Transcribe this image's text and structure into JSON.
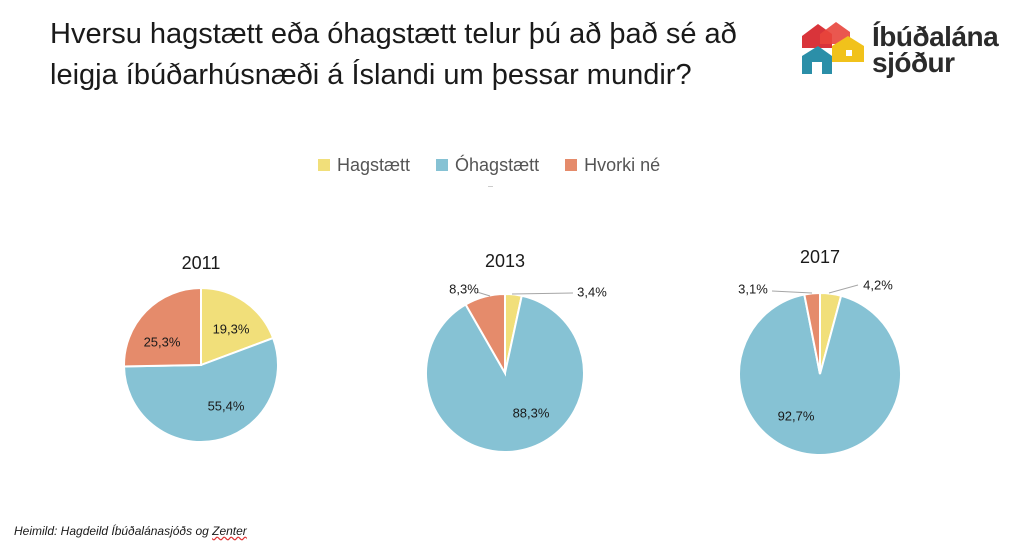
{
  "title": "Hversu hagstætt eða óhagstætt telur þú að það sé að leigja íbúðarhúsnæði á Íslandi um þessar mundir?",
  "logo": {
    "line1": "Íbúðalána",
    "line2": "sjóður"
  },
  "legend": [
    {
      "label": "Hagstætt",
      "color": "#f1df7a"
    },
    {
      "label": "Óhagstætt",
      "color": "#86c2d4"
    },
    {
      "label": "Hvorki né",
      "color": "#e58b6b"
    }
  ],
  "source": {
    "prefix": "Heimild: Hagdeild Íbúðalánasjóðs og ",
    "underlined": "Zenter"
  },
  "chart_data": [
    {
      "type": "pie",
      "title": "2011",
      "categories": [
        "Hagstætt",
        "Óhagstætt",
        "Hvorki né"
      ],
      "values": [
        19.3,
        55.4,
        25.3
      ],
      "labels": [
        "19,3%",
        "55,4%",
        "25,3%"
      ]
    },
    {
      "type": "pie",
      "title": "2013",
      "categories": [
        "Hagstætt",
        "Óhagstætt",
        "Hvorki né"
      ],
      "values": [
        3.4,
        88.3,
        8.3
      ],
      "labels": [
        "3,4%",
        "88,3%",
        "8,3%"
      ]
    },
    {
      "type": "pie",
      "title": "2017",
      "categories": [
        "Hagstætt",
        "Óhagstætt",
        "Hvorki né"
      ],
      "values": [
        4.2,
        92.7,
        3.1
      ],
      "labels": [
        "4,2%",
        "92,7%",
        "3,1%"
      ]
    }
  ]
}
